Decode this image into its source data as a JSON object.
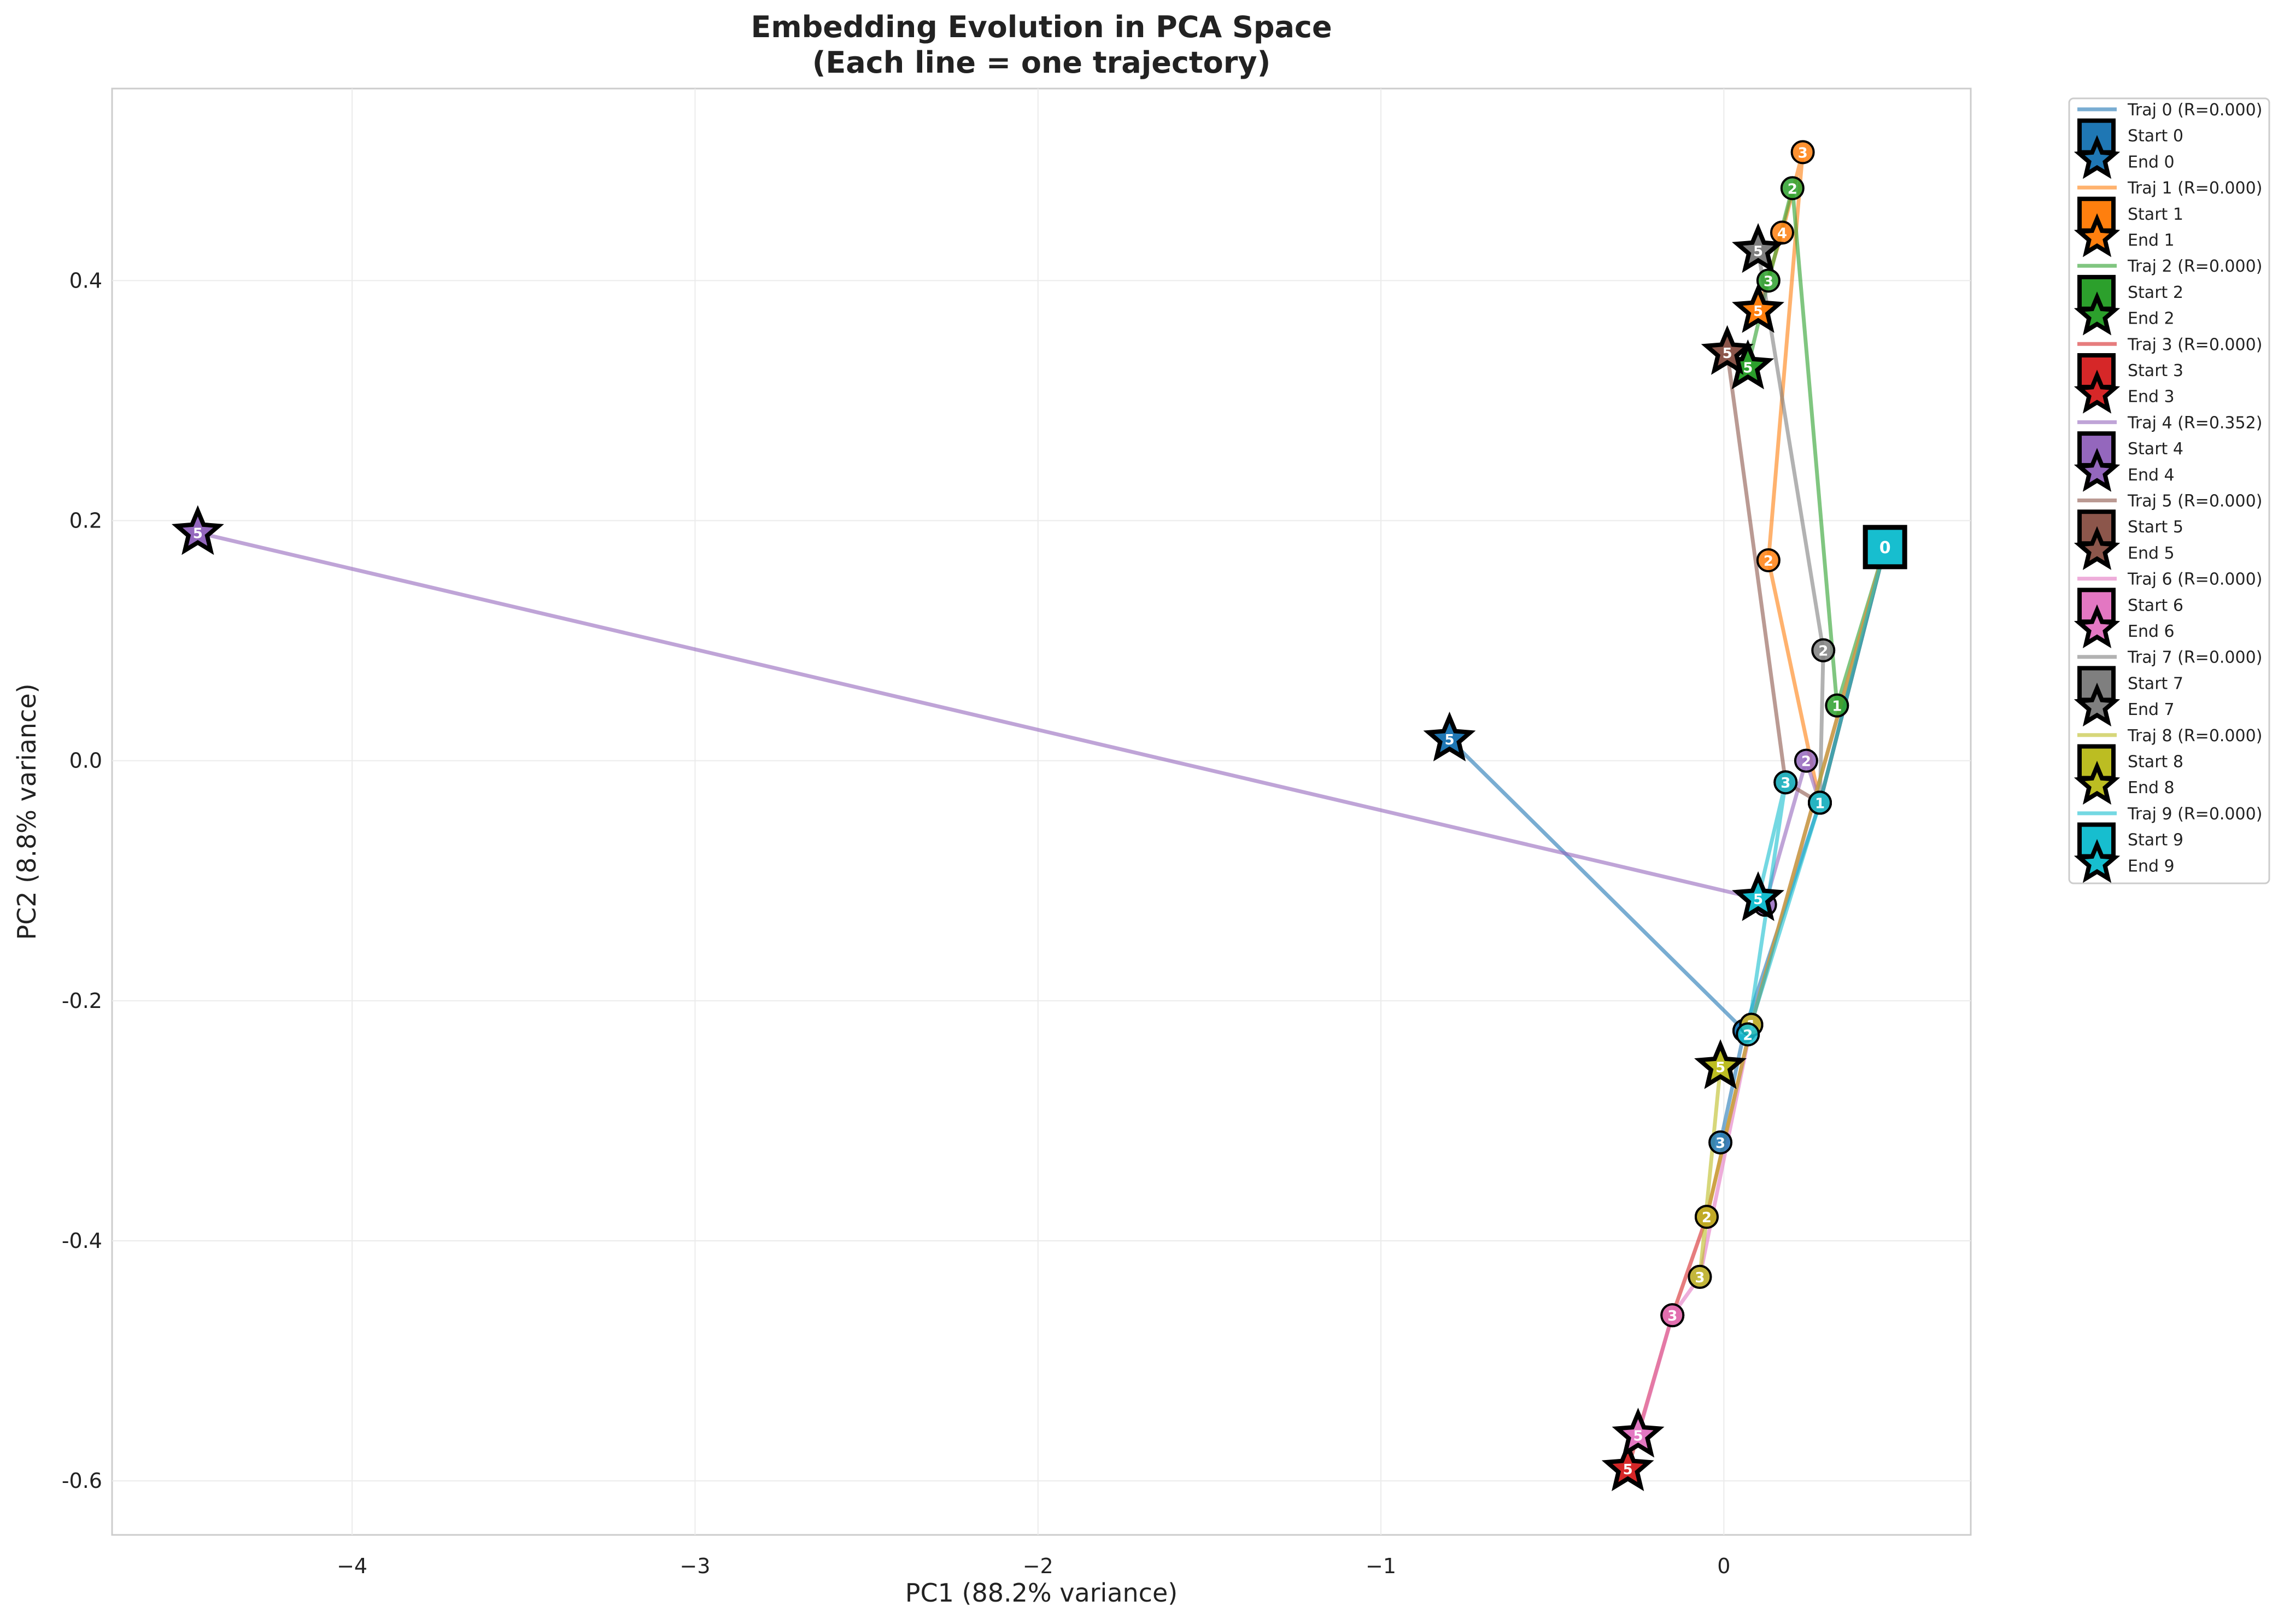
{
  "chart_data": {
    "type": "line",
    "title": "Embedding Evolution in PCA Space",
    "subtitle": "(Each line = one trajectory)",
    "xlabel": "PC1 (88.2% variance)",
    "ylabel": "PC2 (8.8% variance)",
    "xlim": [
      -4.7,
      0.72
    ],
    "ylim": [
      -0.645,
      0.56
    ],
    "xticks": [
      -4,
      -3,
      -2,
      -1,
      0
    ],
    "yticks": [
      -0.6,
      -0.4,
      -0.2,
      0.0,
      0.2,
      0.4
    ],
    "xtick_labels": [
      "−4",
      "−3",
      "−2",
      "−1",
      "0"
    ],
    "ytick_labels": [
      "-0.6",
      "-0.4",
      "-0.2",
      "0.0",
      "0.2",
      "0.4"
    ],
    "grid": true,
    "legend_position": "outside-top-right",
    "start_label": "0",
    "series": [
      {
        "name": "Traj 0 (R=0.000)",
        "start_name": "Start 0",
        "end_name": "End 0",
        "color": "#1f77b4",
        "points": [
          [
            0.47,
            0.178
          ],
          [
            0.28,
            -0.035
          ],
          [
            0.06,
            -0.225
          ],
          [
            -0.01,
            -0.318
          ],
          [
            0.06,
            -0.225
          ],
          [
            -0.8,
            0.018
          ]
        ]
      },
      {
        "name": "Traj 1 (R=0.000)",
        "start_name": "Start 1",
        "end_name": "End 1",
        "color": "#ff7f0e",
        "points": [
          [
            0.47,
            0.178
          ],
          [
            0.28,
            -0.035
          ],
          [
            0.13,
            0.167
          ],
          [
            0.23,
            0.507
          ],
          [
            0.17,
            0.44
          ],
          [
            0.1,
            0.375
          ]
        ]
      },
      {
        "name": "Traj 2 (R=0.000)",
        "start_name": "Start 2",
        "end_name": "End 2",
        "color": "#2ca02c",
        "points": [
          [
            0.47,
            0.178
          ],
          [
            0.33,
            0.046
          ],
          [
            0.2,
            0.477
          ],
          [
            0.13,
            0.4
          ],
          [
            0.07,
            0.328
          ],
          [
            0.07,
            0.328
          ]
        ]
      },
      {
        "name": "Traj 3 (R=0.000)",
        "start_name": "Start 3",
        "end_name": "End 3",
        "color": "#d62728",
        "points": [
          [
            0.47,
            0.178
          ],
          [
            0.08,
            -0.22
          ],
          [
            -0.05,
            -0.38
          ],
          [
            -0.15,
            -0.462
          ],
          [
            -0.28,
            -0.59
          ],
          [
            -0.28,
            -0.59
          ]
        ]
      },
      {
        "name": "Traj 4 (R=0.352)",
        "start_name": "Start 4",
        "end_name": "End 4",
        "color": "#9467bd",
        "points": [
          [
            0.47,
            0.178
          ],
          [
            0.28,
            -0.035
          ],
          [
            0.24,
            0.0
          ],
          [
            0.12,
            -0.12
          ],
          [
            0.1,
            -0.115
          ],
          [
            -4.45,
            0.19
          ]
        ]
      },
      {
        "name": "Traj 5 (R=0.000)",
        "start_name": "Start 5",
        "end_name": "End 5",
        "color": "#8c564b",
        "points": [
          [
            0.47,
            0.178
          ],
          [
            0.28,
            -0.035
          ],
          [
            0.18,
            -0.018
          ],
          [
            0.01,
            0.34
          ],
          [
            0.01,
            0.34
          ],
          [
            0.01,
            0.34
          ]
        ]
      },
      {
        "name": "Traj 6 (R=0.000)",
        "start_name": "Start 6",
        "end_name": "End 6",
        "color": "#e377c2",
        "points": [
          [
            0.47,
            0.178
          ],
          [
            0.08,
            -0.22
          ],
          [
            -0.07,
            -0.43
          ],
          [
            -0.15,
            -0.462
          ],
          [
            -0.25,
            -0.562
          ],
          [
            -0.25,
            -0.562
          ]
        ]
      },
      {
        "name": "Traj 7 (R=0.000)",
        "start_name": "Start 7",
        "end_name": "End 7",
        "color": "#7f7f7f",
        "points": [
          [
            0.47,
            0.178
          ],
          [
            0.28,
            -0.035
          ],
          [
            0.29,
            0.092
          ],
          [
            0.1,
            0.425
          ],
          [
            0.1,
            0.425
          ],
          [
            0.1,
            0.425
          ]
        ]
      },
      {
        "name": "Traj 8 (R=0.000)",
        "start_name": "Start 8",
        "end_name": "End 8",
        "color": "#bcbd22",
        "points": [
          [
            0.47,
            0.178
          ],
          [
            0.08,
            -0.22
          ],
          [
            -0.05,
            -0.38
          ],
          [
            -0.07,
            -0.43
          ],
          [
            -0.01,
            -0.255
          ],
          [
            -0.01,
            -0.255
          ]
        ]
      },
      {
        "name": "Traj 9 (R=0.000)",
        "start_name": "Start 9",
        "end_name": "End 9",
        "color": "#17becf",
        "points": [
          [
            0.47,
            0.178
          ],
          [
            0.28,
            -0.035
          ],
          [
            0.07,
            -0.228
          ],
          [
            0.18,
            -0.018
          ],
          [
            0.1,
            -0.115
          ],
          [
            0.1,
            -0.115
          ]
        ]
      }
    ]
  }
}
